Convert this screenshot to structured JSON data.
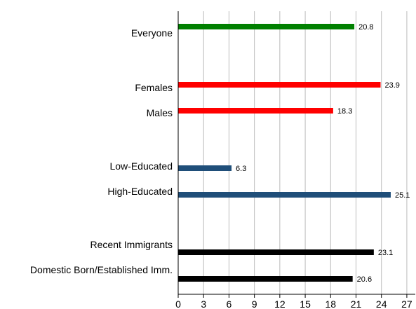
{
  "chart_data": {
    "type": "bar",
    "orientation": "horizontal",
    "title": "",
    "xlabel": "",
    "ylabel": "",
    "xlim": [
      0,
      28
    ],
    "x_ticks": [
      0,
      3,
      6,
      9,
      12,
      15,
      18,
      21,
      24,
      27
    ],
    "grid": "vertical",
    "legend": "none",
    "categories": [
      "Everyone",
      "Females",
      "Males",
      "Low-Educated",
      "High-Educated",
      "Recent Immigrants",
      "Domestic Born/Established Imm."
    ],
    "values": [
      20.8,
      23.9,
      18.3,
      6.3,
      25.1,
      23.1,
      20.6
    ],
    "value_labels": [
      "20.8",
      "23.9",
      "18.3",
      "6.3",
      "25.1",
      "23.1",
      "20.6"
    ],
    "colors": [
      "#008000",
      "#ff0000",
      "#ff0000",
      "#1f4e79",
      "#1f4e79",
      "#000000",
      "#000000"
    ]
  }
}
